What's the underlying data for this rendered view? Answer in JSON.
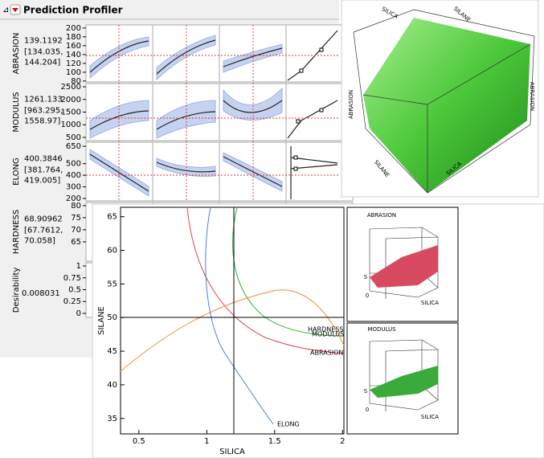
{
  "profiler": {
    "title": "Prediction Profiler",
    "rows": [
      {
        "name": "ABRASION",
        "value": "139.1192",
        "ci": [
          "[134.035,",
          "144.204]"
        ],
        "lim": [
          78,
          207
        ],
        "ticks": [
          200,
          180,
          160,
          140,
          120,
          100,
          80
        ]
      },
      {
        "name": "MODULUS",
        "value": "1261.133",
        "ci": [
          "[963.295,",
          "1558.97]"
        ],
        "lim": [
          373,
          2627
        ],
        "ticks": [
          2500,
          2000,
          1500,
          1000,
          500
        ]
      },
      {
        "name": "ELONG",
        "value": "400.3846",
        "ci": [
          "[381.764,",
          "419.005]"
        ],
        "lim": [
          179,
          685
        ],
        "ticks": [
          650,
          500,
          400,
          300,
          200
        ]
      },
      {
        "name": "HARDNESS",
        "value": "68.90962",
        "ci": [
          "[67.7612,",
          "70.058]"
        ],
        "lim": [
          57,
          81.3
        ],
        "ticks": [
          80,
          75,
          70,
          65
        ]
      },
      {
        "name": "Desirability",
        "value": "0.008031",
        "lim": [
          -0.085,
          1.068
        ],
        "ticks": [
          1,
          0.75,
          0.5,
          0.25,
          0
        ]
      }
    ]
  },
  "surface_plot": {
    "labels": [
      "SILICA",
      "SILANE",
      "ABRASION",
      "ABRASION",
      "SILANE",
      "SILICA"
    ]
  },
  "contour_plot": {
    "x_label": "SILICA",
    "y_label": "SILANE",
    "xlim": [
      0.365,
      2.01
    ],
    "xticks": [
      0.5,
      1,
      1.5,
      2
    ],
    "ylim": [
      32.7,
      66.4
    ],
    "yticks": [
      65,
      60,
      55,
      50,
      45,
      40,
      35
    ],
    "curve_labels": [
      "HARDNESS",
      "MODULUS",
      "ABRASION",
      "ELONG"
    ]
  },
  "mini_plots": [
    {
      "title": "ABRASION",
      "labels": [
        "S",
        "0",
        "SILICA"
      ]
    },
    {
      "title": "MODULUS",
      "labels": [
        "S",
        "0",
        "SILICA"
      ]
    }
  ]
}
